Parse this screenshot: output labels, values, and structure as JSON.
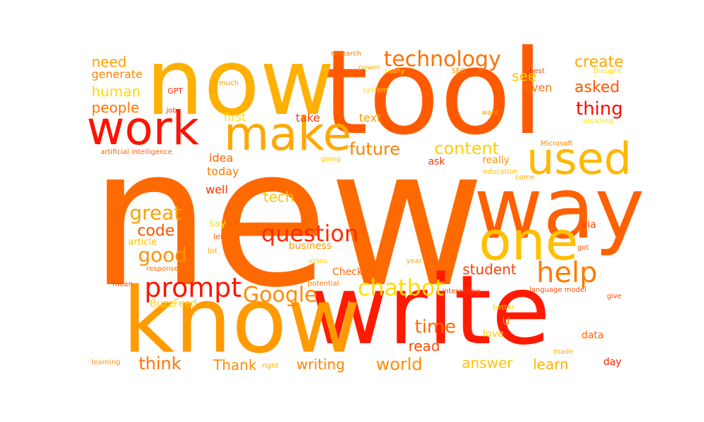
{
  "words": [
    {
      "text": "new",
      "color": "#ff6a00"
    },
    {
      "text": "tool",
      "color": "#ff5a00"
    },
    {
      "text": "now",
      "color": "#ffb000"
    },
    {
      "text": "write",
      "color": "#ff1a00"
    },
    {
      "text": "know",
      "color": "#ff9a00"
    },
    {
      "text": "way",
      "color": "#ff6000"
    },
    {
      "text": "work",
      "color": "#ff1200"
    },
    {
      "text": "make",
      "color": "#ffa800"
    },
    {
      "text": "used",
      "color": "#ffb800"
    },
    {
      "text": "one",
      "color": "#ffc000"
    },
    {
      "text": "help",
      "color": "#ff7a00"
    },
    {
      "text": "prompt",
      "color": "#ff1500"
    },
    {
      "text": "chatbot",
      "color": "#ffdc00"
    },
    {
      "text": "question",
      "color": "#ff2a00"
    },
    {
      "text": "technology",
      "color": "#ff7000"
    },
    {
      "text": "Google",
      "color": "#ff8a00"
    },
    {
      "text": "future",
      "color": "#ff8000"
    },
    {
      "text": "content",
      "color": "#ffd000"
    },
    {
      "text": "great",
      "color": "#ffa000"
    },
    {
      "text": "good",
      "color": "#ff9000"
    },
    {
      "text": "code",
      "color": "#ff5000"
    },
    {
      "text": "time",
      "color": "#ff6c00"
    },
    {
      "text": "thing",
      "color": "#ff0a00"
    },
    {
      "text": "think",
      "color": "#ff7200"
    },
    {
      "text": "world",
      "color": "#ff8c00"
    },
    {
      "text": "writing",
      "color": "#ff8400"
    },
    {
      "text": "answer",
      "color": "#ffc400"
    },
    {
      "text": "Thank",
      "color": "#ff8e00"
    },
    {
      "text": "learn",
      "color": "#ffb400"
    },
    {
      "text": "read",
      "color": "#ff4a00"
    },
    {
      "text": "student",
      "color": "#ff4000"
    },
    {
      "text": "people",
      "color": "#ff7600"
    },
    {
      "text": "human",
      "color": "#ffd800"
    },
    {
      "text": "need",
      "color": "#ffa400"
    },
    {
      "text": "generate",
      "color": "#ff8200"
    },
    {
      "text": "create",
      "color": "#ffa600"
    },
    {
      "text": "asked",
      "color": "#ff5800"
    },
    {
      "text": "see",
      "color": "#ffc800"
    },
    {
      "text": "tech",
      "color": "#ffc600"
    },
    {
      "text": "idea",
      "color": "#ff6400"
    },
    {
      "text": "today",
      "color": "#ff7c00"
    },
    {
      "text": "well",
      "color": "#ff3000"
    },
    {
      "text": "text",
      "color": "#ff9c00"
    },
    {
      "text": "take",
      "color": "#ff3a00"
    },
    {
      "text": "first",
      "color": "#ffe000"
    },
    {
      "text": "even",
      "color": "#ff7400"
    },
    {
      "text": "really",
      "color": "#ff9400"
    },
    {
      "text": "ask",
      "color": "#ff3400"
    },
    {
      "text": "say",
      "color": "#ffe400"
    },
    {
      "text": "business",
      "color": "#ff9800"
    },
    {
      "text": "Check",
      "color": "#ff6600"
    },
    {
      "text": "data",
      "color": "#ff6200"
    },
    {
      "text": "love",
      "color": "#ffcc00"
    },
    {
      "text": "day",
      "color": "#ff2200"
    },
    {
      "text": "via",
      "color": "#ff4400"
    },
    {
      "text": "u",
      "color": "#ff8800"
    },
    {
      "text": "BuzzFeed",
      "color": "#ffd400"
    },
    {
      "text": "article",
      "color": "#ffc200"
    },
    {
      "text": "lot",
      "color": "#ffb200"
    },
    {
      "text": "let",
      "color": "#ff5c00"
    },
    {
      "text": "GPT",
      "color": "#ff2c00"
    },
    {
      "text": "job",
      "color": "#ff3600"
    },
    {
      "text": "much",
      "color": "#ff9600"
    },
    {
      "text": "system",
      "color": "#ffd600"
    },
    {
      "text": "power",
      "color": "#ffb600"
    },
    {
      "text": "many",
      "color": "#ffe200"
    },
    {
      "text": "SEO",
      "color": "#ff9200"
    },
    {
      "text": "best",
      "color": "#ff3c00"
    },
    {
      "text": "thought",
      "color": "#ffdd00"
    },
    {
      "text": "research",
      "color": "#ff7800"
    },
    {
      "text": "want",
      "color": "#ff9e00"
    },
    {
      "text": "amazing",
      "color": "#ffe600"
    },
    {
      "text": "artificial intelligence",
      "color": "#ff5e00"
    },
    {
      "text": "Microsoft",
      "color": "#ff8600"
    },
    {
      "text": "education",
      "color": "#ffbc00"
    },
    {
      "text": "come",
      "color": "#ffaa00"
    },
    {
      "text": "going",
      "color": "#ffc800"
    },
    {
      "text": "got",
      "color": "#ff5400"
    },
    {
      "text": "video",
      "color": "#ffd200"
    },
    {
      "text": "year",
      "color": "#ffaa00"
    },
    {
      "text": "response",
      "color": "#ff6e00"
    },
    {
      "text": "potential",
      "color": "#ff7a00"
    },
    {
      "text": "mean",
      "color": "#ff4600"
    },
    {
      "text": "interesting",
      "color": "#ff4200"
    },
    {
      "text": "language model",
      "color": "#ff4e00"
    },
    {
      "text": "give",
      "color": "#ff4800"
    },
    {
      "text": "better",
      "color": "#ffce00"
    },
    {
      "text": "made",
      "color": "#ffb000"
    },
    {
      "text": "learning",
      "color": "#ff9000"
    },
    {
      "text": "right",
      "color": "#ffb000"
    }
  ]
}
